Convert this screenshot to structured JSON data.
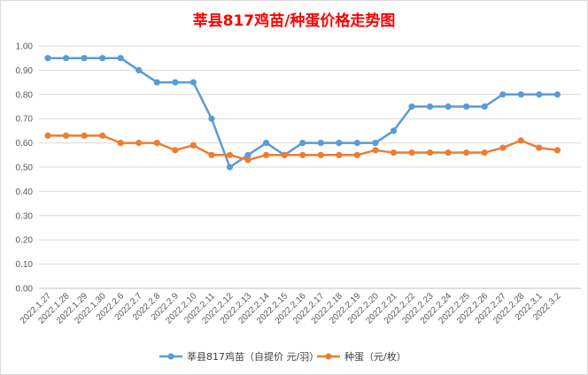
{
  "chart_data": {
    "type": "line",
    "title": "莘县817鸡苗/种蛋价格走势图",
    "title_color": "#ff0000",
    "categories": [
      "2022.1.27",
      "2022.1.28",
      "2022.1.29",
      "2022.1.30",
      "2022.2.6",
      "2022.2.7",
      "2022.2.8",
      "2022.2.9",
      "2022.2.10",
      "2022.2.11",
      "2022.2.12",
      "2022.2.13",
      "2022.2.14",
      "2022.2.15",
      "2022.2.16",
      "2022.2.17",
      "2022.2.18",
      "2022.2.19",
      "2022.2.20",
      "2022.2.21",
      "2022.2.22",
      "2022.2.23",
      "2022.2.24",
      "2022.2.25",
      "2022.2.26",
      "2022.2.27",
      "2022.2.28",
      "2022.3.1",
      "2022.3.2"
    ],
    "y_ticks": [
      "0.00",
      "0.10",
      "0.20",
      "0.30",
      "0.40",
      "0.50",
      "0.60",
      "0.70",
      "0.80",
      "0.90",
      "1.00"
    ],
    "ylim": [
      0,
      1
    ],
    "grid": true,
    "legend_position": "bottom",
    "series": [
      {
        "name": "莘县817鸡苗（自提价 元/羽）",
        "color": "#5b9bd5",
        "values": [
          0.95,
          0.95,
          0.95,
          0.95,
          0.95,
          0.9,
          0.85,
          0.85,
          0.85,
          0.7,
          0.5,
          0.55,
          0.6,
          0.55,
          0.6,
          0.6,
          0.6,
          0.6,
          0.6,
          0.65,
          0.75,
          0.75,
          0.75,
          0.75,
          0.75,
          0.8,
          0.8,
          0.8,
          0.8
        ]
      },
      {
        "name": "种蛋（元/枚）",
        "color": "#ed7d31",
        "values": [
          0.63,
          0.63,
          0.63,
          0.63,
          0.6,
          0.6,
          0.6,
          0.57,
          0.59,
          0.55,
          0.55,
          0.53,
          0.55,
          0.55,
          0.55,
          0.55,
          0.55,
          0.55,
          0.57,
          0.56,
          0.56,
          0.56,
          0.56,
          0.56,
          0.56,
          0.58,
          0.61,
          0.58,
          0.57
        ]
      }
    ]
  }
}
